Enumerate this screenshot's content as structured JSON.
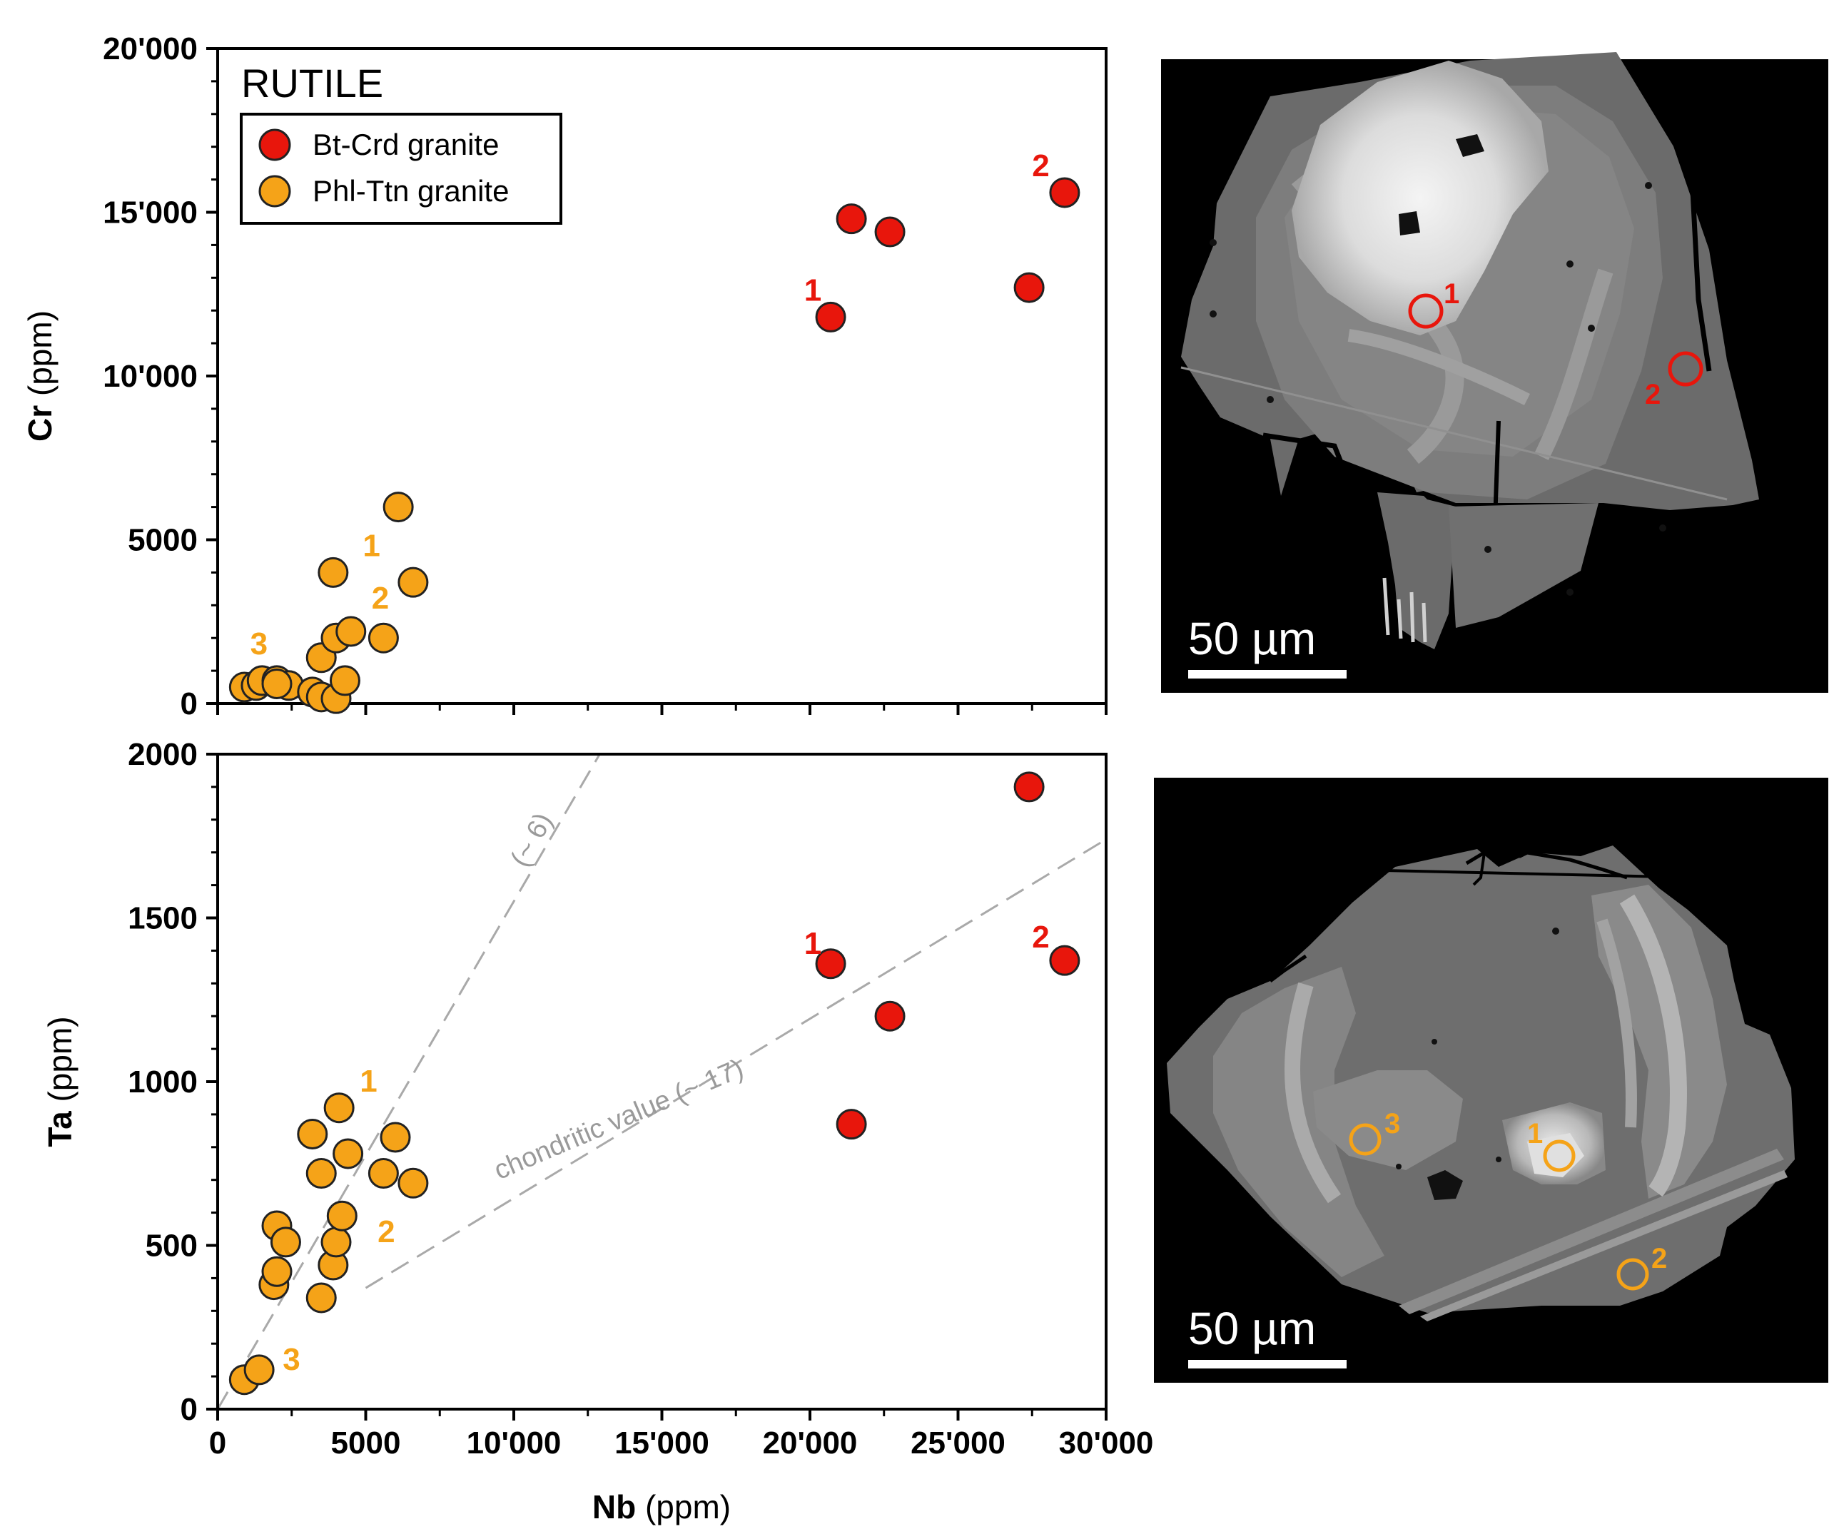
{
  "chart_data": [
    {
      "id": "top",
      "type": "scatter",
      "title": "RUTILE",
      "xlabel": {
        "element": "Nb",
        "unit": " (ppm)"
      },
      "ylabel": {
        "element": "Cr",
        "unit": " (ppm)"
      },
      "xlim": [
        0,
        30000
      ],
      "ylim": [
        0,
        20000
      ],
      "x_ticks": [
        0,
        5000,
        10000,
        15000,
        20000,
        25000,
        30000
      ],
      "y_ticks": [
        0,
        5000,
        10000,
        15000,
        20000
      ],
      "y_tick_labels": [
        "0",
        "5000",
        "10'000",
        "15'000",
        "20'000"
      ],
      "legend": {
        "placement": "top-left",
        "entries": [
          {
            "label": "Bt-Crd granite",
            "series": "bt"
          },
          {
            "label": "Phl-Ttn granite",
            "series": "phl"
          }
        ]
      },
      "series": [
        {
          "name": "Bt-Crd granite",
          "key": "bt",
          "color": "#e8160c",
          "x": [
            20700,
            21400,
            22700,
            27400,
            28600
          ],
          "y": [
            11800,
            14800,
            14400,
            12700,
            15600
          ]
        },
        {
          "name": "Phl-Ttn granite",
          "key": "phl",
          "color": "#f5a318",
          "x": [
            900,
            1300,
            1500,
            2000,
            2400,
            3200,
            3500,
            3500,
            4000,
            4000,
            4300,
            4500,
            5600,
            6100,
            6600,
            2000,
            3900
          ],
          "y": [
            500,
            550,
            700,
            700,
            550,
            350,
            1400,
            200,
            2000,
            150,
            700,
            2200,
            2000,
            6000,
            3700,
            600,
            4000
          ]
        }
      ],
      "annotations": [
        {
          "text": "1",
          "x": 19800,
          "y": 12300,
          "color": "#e8160c"
        },
        {
          "text": "2",
          "x": 27500,
          "y": 16100,
          "color": "#e8160c"
        },
        {
          "text": "1",
          "x": 4900,
          "y": 4500,
          "color": "#f5a318"
        },
        {
          "text": "2",
          "x": 5200,
          "y": 2900,
          "color": "#f5a318"
        },
        {
          "text": "3",
          "x": 1100,
          "y": 1500,
          "color": "#f5a318"
        }
      ]
    },
    {
      "id": "bottom",
      "type": "scatter",
      "xlabel": {
        "element": "Nb",
        "unit": " (ppm)"
      },
      "ylabel": {
        "element": "Ta",
        "unit": " (ppm)"
      },
      "xlim": [
        0,
        30000
      ],
      "ylim": [
        0,
        2000
      ],
      "x_ticks": [
        0,
        5000,
        10000,
        15000,
        20000,
        25000,
        30000
      ],
      "x_tick_labels": [
        "0",
        "5000",
        "10'000",
        "15'000",
        "20'000",
        "25'000",
        "30'000"
      ],
      "y_ticks": [
        0,
        500,
        1000,
        1500,
        2000
      ],
      "y_tick_labels": [
        "0",
        "500",
        "1000",
        "1500",
        "2000"
      ],
      "series": [
        {
          "name": "Bt-Crd granite",
          "key": "bt",
          "color": "#e8160c",
          "x": [
            20700,
            21400,
            22700,
            27400,
            28600
          ],
          "y": [
            1360,
            870,
            1200,
            1900,
            1370
          ]
        },
        {
          "name": "Phl-Ttn granite",
          "key": "phl",
          "color": "#f5a318",
          "x": [
            900,
            1400,
            1900,
            2000,
            2000,
            2300,
            3200,
            3500,
            3500,
            3900,
            4000,
            4100,
            4200,
            4400,
            5600,
            6000,
            6600
          ],
          "y": [
            90,
            120,
            380,
            420,
            560,
            510,
            840,
            720,
            340,
            440,
            510,
            920,
            590,
            780,
            720,
            830,
            690
          ]
        }
      ],
      "reference_lines": [
        {
          "label": "(~ 6)",
          "x": [
            0,
            12900
          ],
          "y": [
            0,
            2000
          ],
          "label_x": 10400,
          "label_y": 1650,
          "angle": -61
        },
        {
          "label": "chondritic value (~ 17)",
          "x": [
            5000,
            30000
          ],
          "y": [
            370,
            1740
          ],
          "label_x": 9500,
          "label_y": 700,
          "angle": -23
        }
      ],
      "annotations": [
        {
          "text": "1",
          "x": 19800,
          "y": 1390,
          "color": "#e8160c"
        },
        {
          "text": "2",
          "x": 27500,
          "y": 1410,
          "color": "#e8160c"
        },
        {
          "text": "1",
          "x": 4800,
          "y": 970,
          "color": "#f5a318"
        },
        {
          "text": "2",
          "x": 5400,
          "y": 510,
          "color": "#f5a318"
        },
        {
          "text": "3",
          "x": 2200,
          "y": 120,
          "color": "#f5a318"
        }
      ]
    }
  ],
  "images": [
    {
      "id": "bse-top",
      "scale_bar": "50 µm",
      "spot_color": "#e8160c",
      "spots": [
        {
          "label": "1"
        },
        {
          "label": "2"
        }
      ]
    },
    {
      "id": "bse-bottom",
      "scale_bar": "50 µm",
      "spot_color": "#f5a318",
      "spots": [
        {
          "label": "1"
        },
        {
          "label": "2"
        },
        {
          "label": "3"
        }
      ]
    }
  ]
}
